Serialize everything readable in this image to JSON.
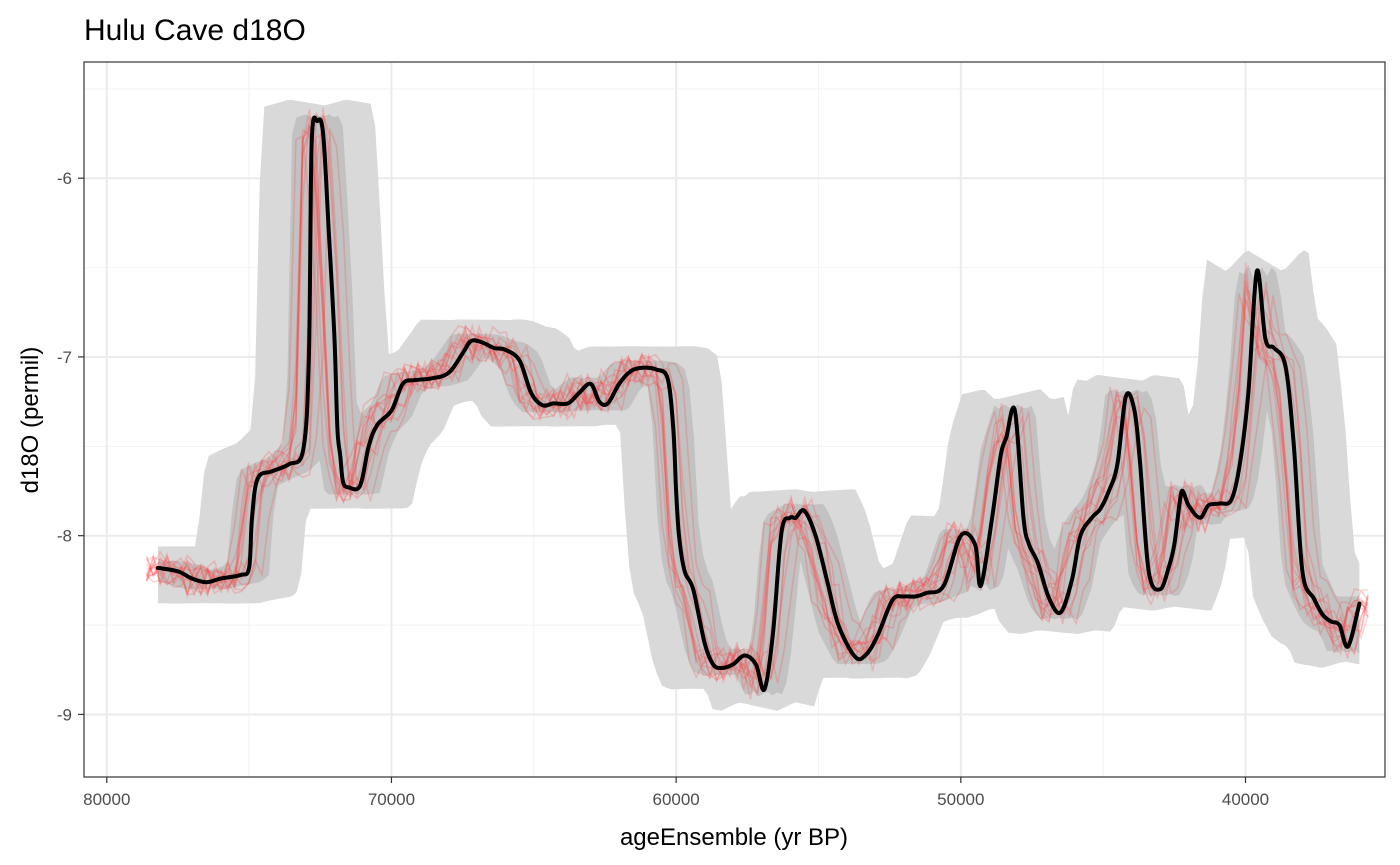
{
  "chart_data": {
    "type": "line",
    "title": "Hulu Cave d18O",
    "xlabel": "ageEnsemble (yr BP)",
    "ylabel": "d18O (permil)",
    "x_reversed": true,
    "xlim": [
      80800,
      35100
    ],
    "ylim": [
      -9.35,
      -5.35
    ],
    "x_ticks": [
      80000,
      70000,
      60000,
      50000,
      40000
    ],
    "y_ticks": [
      -6,
      -7,
      -8,
      -9
    ],
    "grid": true,
    "legend": "none",
    "colors": {
      "median": "#000000",
      "band_outer": "#d9d9d9",
      "band_inner": "#a6a6a6",
      "ensemble": "#ff3b3b"
    },
    "series": [
      {
        "role": "median",
        "x": [
          78200,
          77500,
          77000,
          76500,
          76000,
          75300,
          75000,
          74900,
          74700,
          74200,
          73600,
          73100,
          72900,
          72800,
          72600,
          72400,
          72200,
          72000,
          71900,
          71800,
          71700,
          71500,
          71100,
          70800,
          70500,
          70000,
          69600,
          69200,
          68600,
          68000,
          67500,
          67200,
          66800,
          66400,
          66000,
          65500,
          65100,
          64700,
          64300,
          63800,
          63400,
          63000,
          62700,
          62400,
          62000,
          61600,
          61200,
          60700,
          60300,
          60100,
          60000,
          59900,
          59700,
          59400,
          59000,
          58700,
          58400,
          58000,
          57600,
          57200,
          56900,
          56600,
          56300,
          56000,
          55800,
          55500,
          55100,
          54700,
          54300,
          53700,
          53300,
          52900,
          52400,
          52000,
          51600,
          51200,
          50600,
          50000,
          49500,
          49300,
          48900,
          48600,
          48400,
          48100,
          47800,
          47600,
          47300,
          46900,
          46500,
          46100,
          45800,
          45400,
          45100,
          44800,
          44500,
          44200,
          43900,
          43700,
          43400,
          43000,
          42700,
          42500,
          42300,
          42200,
          42000,
          41600,
          41300,
          40900,
          40500,
          40200,
          39900,
          39600,
          39300,
          39000,
          38600,
          38300,
          38000,
          37600,
          37300,
          37000,
          36700,
          36400,
          36000
        ],
        "y": [
          -8.18,
          -8.2,
          -8.24,
          -8.26,
          -8.24,
          -8.22,
          -8.18,
          -7.9,
          -7.68,
          -7.64,
          -7.6,
          -7.52,
          -7.0,
          -5.8,
          -5.68,
          -5.75,
          -6.3,
          -6.9,
          -7.4,
          -7.55,
          -7.7,
          -7.73,
          -7.72,
          -7.5,
          -7.38,
          -7.3,
          -7.15,
          -7.13,
          -7.12,
          -7.09,
          -6.98,
          -6.91,
          -6.92,
          -6.95,
          -6.96,
          -7.02,
          -7.2,
          -7.27,
          -7.26,
          -7.26,
          -7.2,
          -7.15,
          -7.25,
          -7.26,
          -7.15,
          -7.08,
          -7.06,
          -7.07,
          -7.12,
          -7.4,
          -7.75,
          -8.0,
          -8.2,
          -8.3,
          -8.6,
          -8.72,
          -8.74,
          -8.72,
          -8.67,
          -8.72,
          -8.86,
          -8.55,
          -7.98,
          -7.9,
          -7.9,
          -7.86,
          -8.0,
          -8.25,
          -8.5,
          -8.68,
          -8.66,
          -8.55,
          -8.36,
          -8.34,
          -8.34,
          -8.32,
          -8.28,
          -8.0,
          -8.05,
          -8.28,
          -7.9,
          -7.55,
          -7.45,
          -7.3,
          -7.9,
          -8.05,
          -8.15,
          -8.35,
          -8.43,
          -8.25,
          -8.0,
          -7.9,
          -7.85,
          -7.75,
          -7.6,
          -7.22,
          -7.3,
          -7.6,
          -8.2,
          -8.3,
          -8.18,
          -8.05,
          -7.8,
          -7.75,
          -7.83,
          -7.9,
          -7.83,
          -7.82,
          -7.8,
          -7.6,
          -7.2,
          -6.52,
          -6.9,
          -6.95,
          -7.05,
          -7.5,
          -8.2,
          -8.35,
          -8.44,
          -8.48,
          -8.5,
          -8.62,
          -8.38
        ]
      }
    ]
  }
}
